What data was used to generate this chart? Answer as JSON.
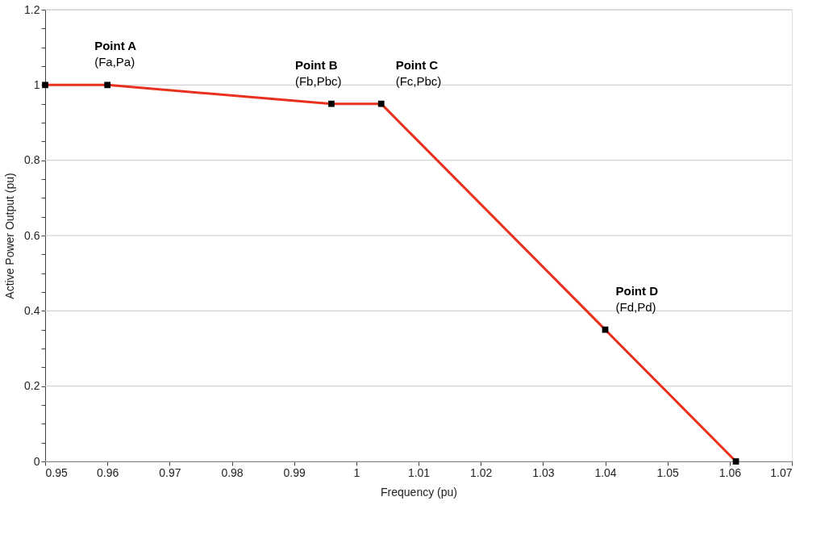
{
  "chart_data": {
    "type": "line",
    "xlabel": "Frequency (pu)",
    "ylabel": "Active Power Output (pu)",
    "x": [
      0.95,
      0.96,
      0.996,
      1.004,
      1.04,
      1.061
    ],
    "series": [
      {
        "color": "#e8301c",
        "values": [
          1,
          1,
          0.95,
          0.95,
          0.35,
          0
        ]
      }
    ],
    "marker": "square",
    "line_style": "solid",
    "grid": "y",
    "xlim": [
      0.95,
      1.07
    ],
    "xticks": [
      0.95,
      0.96,
      0.97,
      0.98,
      0.99,
      {
        "value": 1,
        "label": "1"
      },
      1.01,
      1.02,
      1.03,
      1.04,
      1.05,
      1.06,
      1.07
    ],
    "ylim": [
      0,
      1.2
    ],
    "yticks": [
      0,
      {
        "value": 0.05,
        "label": null
      },
      {
        "value": 0.1,
        "label": null
      },
      {
        "value": 0.15,
        "label": null
      },
      0.2,
      {
        "value": 0.25,
        "label": null
      },
      {
        "value": 0.3,
        "label": null
      },
      {
        "value": 0.35,
        "label": null
      },
      0.4,
      {
        "value": 0.45,
        "label": null
      },
      {
        "value": 0.5,
        "label": null
      },
      {
        "value": 0.55,
        "label": null
      },
      0.6,
      {
        "value": 0.65,
        "label": null
      },
      {
        "value": 0.7,
        "label": null
      },
      {
        "value": 0.75,
        "label": null
      },
      0.8,
      {
        "value": 0.85,
        "label": null
      },
      {
        "value": 0.9,
        "label": null
      },
      {
        "value": 0.95,
        "label": null
      },
      {
        "value": 1,
        "label": "1"
      },
      {
        "value": 1.05,
        "label": null
      },
      {
        "value": 1.1,
        "label": null
      },
      {
        "value": 1.15,
        "label": null
      },
      1.2
    ],
    "annotations": [
      {
        "text": "Point A\n(Fa,Pa)",
        "x": 0.96,
        "y": 1
      },
      {
        "text": "Point B\n(Fb,Pbc)",
        "x": 0.996,
        "y": 0.95
      },
      {
        "text": "Point C\n(Fc,Pbc)",
        "x": 1.004,
        "y": 0.95
      },
      {
        "text": "Point D\n(Fd,Pd)",
        "x": 1.04,
        "y": 0.35
      }
    ]
  }
}
